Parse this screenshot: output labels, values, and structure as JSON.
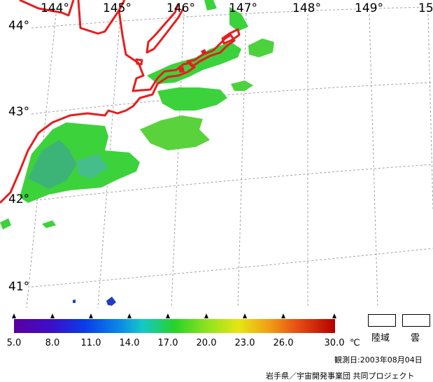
{
  "map": {
    "longitude_labels": [
      "144°",
      "145°",
      "146°",
      "147°",
      "148°",
      "149°",
      "15"
    ],
    "latitude_labels": [
      "44°",
      "43°",
      "42°",
      "41°"
    ],
    "colors": {
      "coastline": "#e61e1e",
      "grid": "#a0a0a0",
      "sst_green": "#3cd23c",
      "sst_teal": "#3cb478",
      "sst_blue": "#1e3cc8"
    }
  },
  "color_scale": {
    "tick_labels": [
      "5.0",
      "8.0",
      "11.0",
      "14.0",
      "17.0",
      "20.0",
      "23.0",
      "26.0",
      "30.0"
    ],
    "unit": "℃",
    "range": [
      5.0,
      30.0
    ]
  },
  "legend": {
    "land_label": "陸域",
    "cloud_label": "雲"
  },
  "footer": {
    "observation_date": "観測日:2003年08月04日",
    "credit": "岩手県／宇宙開発事業団 共同プロジェクト"
  }
}
